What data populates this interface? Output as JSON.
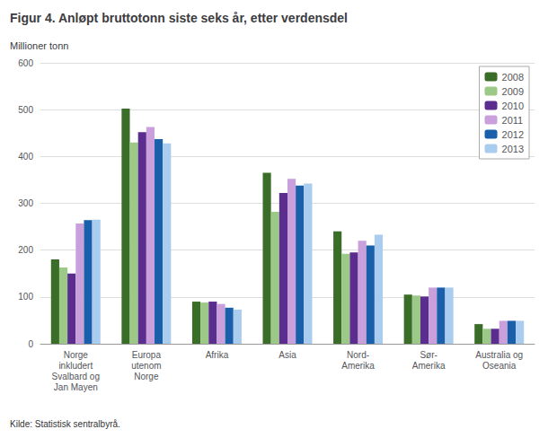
{
  "chart_data": {
    "type": "bar",
    "title": "Figur 4. Anløpt bruttotonn siste seks år, etter verdensdel",
    "ylabel": "Millioner tonn",
    "source": "Kilde: Statistisk sentralbyrå.",
    "categories": [
      "Norge\ninkludert\nSvalbard og\nJan Mayen",
      "Europa\nutenom\nNorge",
      "Afrika",
      "Asia",
      "Nord-\nAmerika",
      "Sør-\nAmerika",
      "Australia og\nOseania"
    ],
    "series": [
      {
        "name": "2008",
        "color": "#3a6e28",
        "values": [
          180,
          502,
          90,
          365,
          240,
          105,
          42
        ]
      },
      {
        "name": "2009",
        "color": "#9cc888",
        "values": [
          163,
          430,
          88,
          282,
          192,
          103,
          32
        ]
      },
      {
        "name": "2010",
        "color": "#5b2d8e",
        "values": [
          150,
          452,
          90,
          322,
          195,
          101,
          32
        ]
      },
      {
        "name": "2011",
        "color": "#c9a0dc",
        "values": [
          257,
          463,
          85,
          352,
          220,
          120,
          49
        ]
      },
      {
        "name": "2012",
        "color": "#1a5faa",
        "values": [
          264,
          437,
          77,
          338,
          210,
          120,
          49
        ]
      },
      {
        "name": "2013",
        "color": "#aaccee",
        "values": [
          265,
          428,
          73,
          342,
          233,
          120,
          49
        ]
      }
    ],
    "ylim": [
      0,
      600
    ],
    "yticks": [
      0,
      100,
      200,
      300,
      400,
      500,
      600
    ],
    "grid": true,
    "legend": "upper right"
  }
}
